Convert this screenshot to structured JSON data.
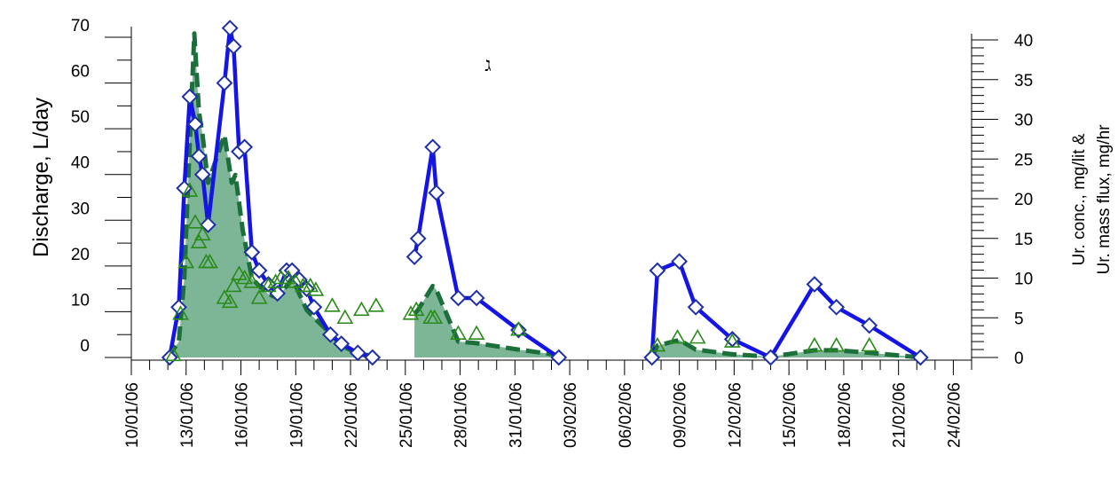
{
  "chart_data": {
    "type": "line",
    "panel_label": "ג",
    "x_tick_labels": [
      "10/01/06",
      "13/01/06",
      "16/01/06",
      "19/01/06",
      "22/01/06",
      "25/01/06",
      "28/01/06",
      "31/01/06",
      "03/02/06",
      "06/02/06",
      "09/02/06",
      "12/02/06",
      "15/02/06",
      "18/02/06",
      "21/02/06",
      "24/02/06"
    ],
    "x_range_days": [
      0,
      46
    ],
    "left_axis": {
      "title": "Discharge, L/day",
      "range": [
        0,
        70
      ],
      "ticks": [
        0,
        10,
        20,
        30,
        40,
        50,
        60,
        70
      ]
    },
    "right_axis": {
      "title_line1": "Ur. conc., mg/lit &",
      "title_line2": "Ur. mass flux, mg/hr",
      "range": [
        0,
        40
      ],
      "ticks": [
        0,
        5,
        10,
        15,
        20,
        25,
        30,
        35,
        40
      ]
    },
    "series": [
      {
        "kind": "discharge",
        "axis": "left",
        "color": "#1414e6",
        "marker_color": "#1f2fa8",
        "segments": [
          [
            [
              2.1,
              0
            ],
            [
              2.6,
              11
            ],
            [
              2.9,
              37
            ],
            [
              3.2,
              57
            ],
            [
              3.5,
              51
            ],
            [
              3.7,
              44
            ],
            [
              3.9,
              40
            ],
            [
              4.2,
              29
            ],
            [
              5.1,
              60
            ],
            [
              5.4,
              72
            ],
            [
              5.6,
              68
            ],
            [
              5.9,
              45
            ],
            [
              6.2,
              46
            ],
            [
              6.6,
              23
            ],
            [
              7.0,
              19
            ],
            [
              7.5,
              16
            ],
            [
              8.0,
              14
            ],
            [
              8.5,
              19
            ],
            [
              8.8,
              19
            ],
            [
              9.2,
              17
            ],
            [
              9.6,
              15
            ],
            [
              10.0,
              11
            ],
            [
              10.9,
              5
            ],
            [
              11.5,
              3
            ],
            [
              12.4,
              1
            ],
            [
              13.2,
              0
            ]
          ],
          [
            [
              15.5,
              22
            ],
            [
              15.7,
              26
            ],
            [
              16.5,
              46
            ],
            [
              16.7,
              36
            ],
            [
              17.9,
              13
            ],
            [
              18.9,
              13
            ],
            [
              21.2,
              6
            ],
            [
              23.4,
              0
            ]
          ],
          [
            [
              28.5,
              0
            ],
            [
              28.8,
              19
            ],
            [
              30.0,
              21
            ],
            [
              30.9,
              11
            ],
            [
              32.9,
              4
            ],
            [
              35.0,
              0
            ],
            [
              37.4,
              16
            ],
            [
              38.6,
              11
            ],
            [
              40.4,
              7
            ],
            [
              43.2,
              0
            ]
          ]
        ]
      },
      {
        "kind": "concentration",
        "axis": "right",
        "color": "#2a8a1a",
        "marker": "triangle",
        "points": [
          [
            2.3,
            0.3
          ],
          [
            2.7,
            5.5
          ],
          [
            3.0,
            12
          ],
          [
            3.2,
            21
          ],
          [
            3.5,
            17
          ],
          [
            3.7,
            14.5
          ],
          [
            3.9,
            15.5
          ],
          [
            4.1,
            12
          ],
          [
            4.3,
            12
          ],
          [
            5.1,
            7.5
          ],
          [
            5.4,
            7
          ],
          [
            5.6,
            9
          ],
          [
            5.9,
            10.5
          ],
          [
            6.2,
            10
          ],
          [
            6.6,
            9.5
          ],
          [
            7.0,
            7.5
          ],
          [
            7.5,
            9
          ],
          [
            7.9,
            9.5
          ],
          [
            8.2,
            10
          ],
          [
            8.6,
            10
          ],
          [
            9.0,
            9.5
          ],
          [
            9.4,
            9
          ],
          [
            9.8,
            9
          ],
          [
            10.1,
            8.5
          ],
          [
            11.0,
            6.5
          ],
          [
            11.7,
            5
          ],
          [
            12.6,
            6
          ],
          [
            13.4,
            6.5
          ],
          [
            15.3,
            5.5
          ],
          [
            15.6,
            6
          ],
          [
            16.4,
            5
          ],
          [
            16.6,
            5
          ],
          [
            17.9,
            3
          ],
          [
            18.9,
            3
          ],
          [
            21.2,
            3.5
          ],
          [
            28.8,
            1.5
          ],
          [
            29.9,
            2.5
          ],
          [
            31.0,
            2.5
          ],
          [
            32.9,
            2
          ],
          [
            37.4,
            1.5
          ],
          [
            38.6,
            1.5
          ],
          [
            40.4,
            1.5
          ]
        ]
      },
      {
        "kind": "mass_flux",
        "axis": "right",
        "color": "#1c6e3a",
        "fill_color": "#7cb696",
        "segments": [
          [
            [
              2.0,
              0
            ],
            [
              2.6,
              2
            ],
            [
              2.9,
              10
            ],
            [
              3.2,
              27
            ],
            [
              3.45,
              48
            ],
            [
              3.7,
              31
            ],
            [
              3.9,
              28
            ],
            [
              4.2,
              22
            ],
            [
              5.1,
              28
            ],
            [
              5.5,
              22
            ],
            [
              5.7,
              23
            ],
            [
              6.1,
              16
            ],
            [
              6.6,
              10
            ],
            [
              7.0,
              9
            ],
            [
              7.5,
              8
            ],
            [
              8.0,
              7.5
            ],
            [
              8.5,
              9
            ],
            [
              8.8,
              10
            ],
            [
              9.2,
              8
            ],
            [
              9.6,
              6
            ],
            [
              10.0,
              5
            ],
            [
              10.9,
              3
            ],
            [
              11.5,
              1.5
            ],
            [
              12.4,
              0.5
            ],
            [
              13.2,
              0.2
            ]
          ],
          [
            [
              15.5,
              5.5
            ],
            [
              15.7,
              6
            ],
            [
              16.5,
              9
            ],
            [
              16.7,
              8.5
            ],
            [
              17.9,
              2
            ],
            [
              18.9,
              1.8
            ],
            [
              21.2,
              1
            ],
            [
              23.4,
              0.3
            ]
          ],
          [
            [
              28.5,
              0
            ],
            [
              28.8,
              1.5
            ],
            [
              30.0,
              2.2
            ],
            [
              30.9,
              1
            ],
            [
              32.9,
              0.4
            ],
            [
              35.0,
              0.1
            ],
            [
              37.4,
              0.9
            ],
            [
              38.6,
              0.9
            ],
            [
              40.4,
              0.6
            ],
            [
              43.2,
              0
            ]
          ]
        ]
      }
    ]
  }
}
